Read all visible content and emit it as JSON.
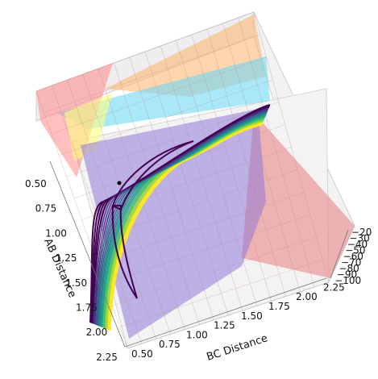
{
  "chart_data": {
    "type": "surface3d_contour",
    "xlabel": "AB Distance",
    "ylabel": "BC Distance",
    "zlabel": "",
    "x_ticks": [
      "0.50",
      "0.75",
      "1.00",
      "1.25",
      "1.50",
      "1.75",
      "2.00",
      "2.25"
    ],
    "y_ticks": [
      "0.50",
      "0.75",
      "1.00",
      "1.25",
      "1.50",
      "1.75",
      "2.00",
      "2.25"
    ],
    "z_ticks": [
      "−20",
      "−30",
      "−40",
      "−50",
      "−60",
      "−70",
      "−80",
      "−90",
      "−100"
    ],
    "x_range": [
      0.5,
      2.3
    ],
    "y_range": [
      0.5,
      2.3
    ],
    "z_range": [
      -100,
      -20
    ],
    "marked_point": {
      "x": 0.74,
      "y": 0.74
    },
    "grid": true,
    "surface_colormap": "spring",
    "contour_colormap": "viridis"
  }
}
